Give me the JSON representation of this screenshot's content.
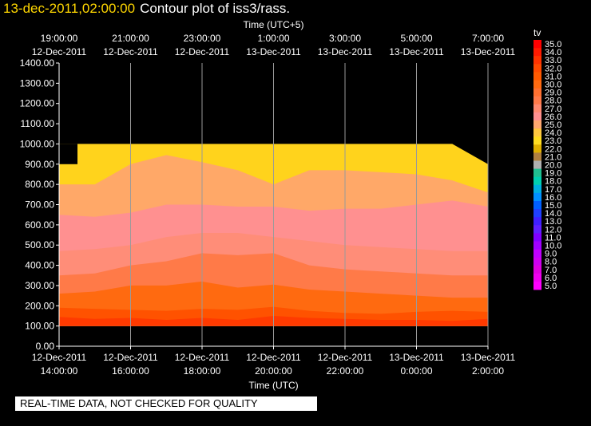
{
  "header": {
    "time_label": "13-dec-2011,02:00:00",
    "title": "Contour plot of iss3/rass."
  },
  "banner": {
    "text": "REAL-TIME DATA, NOT CHECKED FOR QUALITY"
  },
  "colors": {
    "background": "#000000",
    "text": "#ffffff",
    "time_label": "#ffd700",
    "grid": "#9a9a9a",
    "axis": "#ffffff"
  },
  "chart_data": {
    "type": "heatmap",
    "top_axis": {
      "label": "Time (UTC+5)",
      "ticks": [
        {
          "time": "19:00:00",
          "date": "12-Dec-2011"
        },
        {
          "time": "21:00:00",
          "date": "12-Dec-2011"
        },
        {
          "time": "23:00:00",
          "date": "12-Dec-2011"
        },
        {
          "time": "1:00:00",
          "date": "13-Dec-2011"
        },
        {
          "time": "3:00:00",
          "date": "13-Dec-2011"
        },
        {
          "time": "5:00:00",
          "date": "13-Dec-2011"
        },
        {
          "time": "7:00:00",
          "date": "13-Dec-2011"
        }
      ]
    },
    "bottom_axis": {
      "label": "Time (UTC)",
      "ticks": [
        {
          "date": "12-Dec-2011",
          "time": "14:00:00"
        },
        {
          "date": "12-Dec-2011",
          "time": "16:00:00"
        },
        {
          "date": "12-Dec-2011",
          "time": "18:00:00"
        },
        {
          "date": "12-Dec-2011",
          "time": "20:00:00"
        },
        {
          "date": "12-Dec-2011",
          "time": "22:00:00"
        },
        {
          "date": "13-Dec-2011",
          "time": "0:00:00"
        },
        {
          "date": "13-Dec-2011",
          "time": "2:00:00"
        }
      ],
      "range_hours_utc": [
        14,
        26
      ]
    },
    "y_axis": {
      "ticks": [
        "0.00",
        "100.00",
        "200.00",
        "300.00",
        "400.00",
        "500.00",
        "600.00",
        "700.00",
        "800.00",
        "900.00",
        "1000.00",
        "1100.00",
        "1200.00",
        "1300.00",
        "1400.00"
      ],
      "ylim": [
        0,
        1400
      ]
    },
    "data_extent": {
      "x_hours_utc": [
        14.0,
        26.0
      ],
      "y_min": 100,
      "y_max": 1000
    },
    "colorbar": {
      "label": "tv",
      "levels": [
        "35.0",
        "34.0",
        "33.0",
        "32.0",
        "31.0",
        "30.0",
        "29.0",
        "28.0",
        "27.0",
        "26.0",
        "25.0",
        "24.0",
        "23.0",
        "22.0",
        "21.0",
        "20.0",
        "19.0",
        "18.0",
        "17.0",
        "16.0",
        "15.0",
        "14.0",
        "13.0",
        "12.0",
        "11.0",
        "10.0",
        "9.0",
        "8.0",
        "7.0",
        "6.0",
        "5.0"
      ],
      "colors": [
        "#ff0000",
        "#ff1a00",
        "#ff3300",
        "#ff4a00",
        "#ff5a00",
        "#ff6a10",
        "#ff7030",
        "#ff7a4a",
        "#ff8a70",
        "#ff9090",
        "#ffa870",
        "#ffc840",
        "#ffdc20",
        "#e0b000",
        "#b08040",
        "#b0b0b0",
        "#20c090",
        "#00d0b0",
        "#00b0e0",
        "#0090ff",
        "#0060ff",
        "#2040ff",
        "#4020ff",
        "#6020ff",
        "#8000ff",
        "#a000ff",
        "#c000ff",
        "#d000f0",
        "#e000e0",
        "#f000f0",
        "#ff00ff"
      ]
    },
    "bands": [
      {
        "color": "#ff3a00",
        "top": [
          145,
          135,
          140,
          130,
          140,
          130,
          150,
          140,
          135,
          130,
          130,
          125,
          135
        ]
      },
      {
        "color": "#ff5200",
        "top": [
          190,
          185,
          180,
          175,
          185,
          180,
          195,
          175,
          165,
          160,
          170,
          175,
          170
        ]
      },
      {
        "color": "#ff6a10",
        "top": [
          260,
          270,
          300,
          300,
          320,
          290,
          305,
          280,
          270,
          260,
          250,
          240,
          240
        ]
      },
      {
        "color": "#ff7a48",
        "top": [
          350,
          360,
          400,
          420,
          460,
          450,
          460,
          400,
          380,
          370,
          360,
          350,
          350
        ]
      },
      {
        "color": "#ff8d78",
        "top": [
          470,
          480,
          500,
          540,
          560,
          560,
          540,
          520,
          500,
          490,
          480,
          470,
          470
        ]
      },
      {
        "color": "#ff9090",
        "top": [
          650,
          640,
          660,
          700,
          700,
          690,
          690,
          670,
          680,
          680,
          700,
          720,
          690
        ]
      },
      {
        "color": "#ffa868",
        "top": [
          800,
          800,
          900,
          945,
          910,
          870,
          800,
          870,
          870,
          860,
          850,
          820,
          760
        ]
      },
      {
        "color": "#ffd31c",
        "top": [
          1000,
          1000,
          1000,
          1000,
          1000,
          1000,
          1000,
          1000,
          1000,
          1000,
          1000,
          1000,
          900
        ]
      }
    ]
  }
}
